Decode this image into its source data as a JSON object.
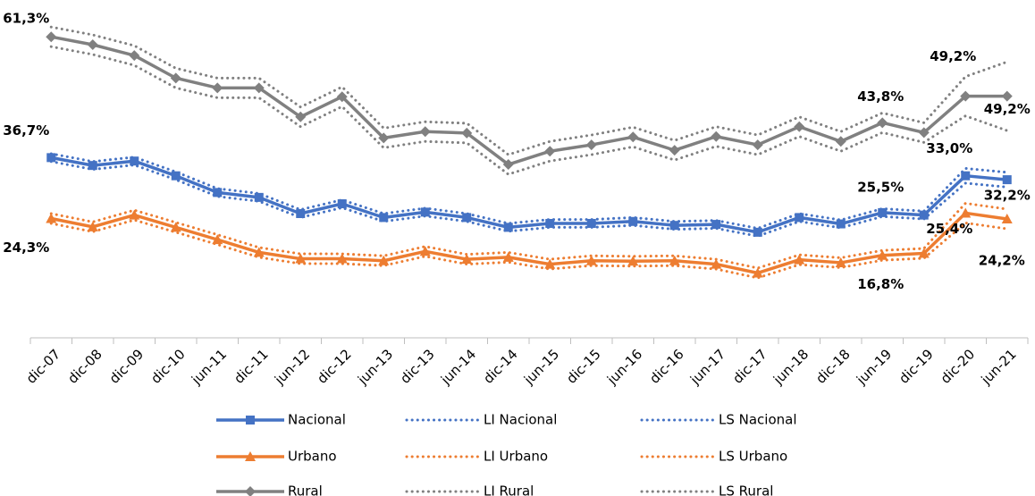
{
  "chart_data": {
    "type": "line",
    "categories": [
      "dic-07",
      "dic-08",
      "dic-09",
      "dic-10",
      "jun-11",
      "dic-11",
      "jun-12",
      "dic-12",
      "jun-13",
      "dic-13",
      "jun-14",
      "dic-14",
      "jun-15",
      "dic-15",
      "jun-16",
      "dic-16",
      "jun-17",
      "dic-17",
      "jun-18",
      "dic-18",
      "jun-19",
      "dic-19",
      "dic-20",
      "jun-21"
    ],
    "ylim": [
      0,
      68.8
    ],
    "series": [
      {
        "name": "Nacional",
        "color": "#4472c4",
        "line": "solid",
        "marker": "square",
        "values": [
          36.7,
          35.1,
          36.0,
          33.0,
          29.6,
          28.6,
          25.3,
          27.3,
          24.5,
          25.6,
          24.5,
          22.5,
          23.3,
          23.3,
          23.7,
          22.9,
          23.1,
          21.5,
          24.5,
          23.2,
          25.5,
          25.0,
          33.0,
          32.2
        ],
        "value_labels": [
          "36,7%",
          null,
          null,
          null,
          null,
          null,
          null,
          null,
          null,
          null,
          null,
          null,
          null,
          null,
          null,
          null,
          null,
          null,
          null,
          null,
          "25,5%",
          null,
          "33,0%",
          "32,2%"
        ]
      },
      {
        "name": "LI Nacional",
        "color": "#4472c4",
        "line": "dotted",
        "values": [
          35.9,
          34.3,
          35.2,
          32.2,
          28.8,
          27.8,
          24.5,
          26.5,
          23.7,
          24.8,
          23.7,
          21.7,
          22.5,
          22.5,
          22.9,
          22.1,
          22.3,
          20.7,
          23.7,
          22.4,
          24.7,
          24.2,
          31.5,
          30.7
        ]
      },
      {
        "name": "LS Nacional",
        "color": "#4472c4",
        "line": "dotted",
        "values": [
          37.5,
          35.9,
          36.8,
          33.8,
          30.4,
          29.4,
          26.1,
          28.1,
          25.3,
          26.4,
          25.3,
          23.3,
          24.1,
          24.1,
          24.5,
          23.7,
          23.9,
          22.3,
          25.3,
          24.0,
          26.3,
          25.8,
          34.5,
          33.7
        ]
      },
      {
        "name": "Urbano",
        "color": "#ed7d31",
        "line": "solid",
        "marker": "triangle",
        "values": [
          24.3,
          22.6,
          25.0,
          22.5,
          20.0,
          17.4,
          16.1,
          16.1,
          15.7,
          17.6,
          16.0,
          16.4,
          15.0,
          15.7,
          15.6,
          15.7,
          15.0,
          13.2,
          15.9,
          15.3,
          16.8,
          17.2,
          25.4,
          24.2
        ],
        "value_labels": [
          "24,3%",
          null,
          null,
          null,
          null,
          null,
          null,
          null,
          null,
          null,
          null,
          null,
          null,
          null,
          null,
          null,
          null,
          null,
          null,
          null,
          "16,8%",
          null,
          "25,4%",
          "24,2%"
        ]
      },
      {
        "name": "LI Urbano",
        "color": "#ed7d31",
        "line": "dotted",
        "values": [
          23.3,
          21.6,
          24.0,
          21.5,
          19.0,
          16.4,
          15.1,
          15.1,
          14.7,
          16.6,
          15.0,
          15.4,
          14.0,
          14.7,
          14.6,
          14.7,
          14.0,
          12.2,
          14.9,
          14.3,
          15.8,
          16.2,
          23.4,
          22.2
        ]
      },
      {
        "name": "LS Urbano",
        "color": "#ed7d31",
        "line": "dotted",
        "values": [
          25.3,
          23.6,
          26.0,
          23.5,
          21.0,
          18.4,
          17.1,
          17.1,
          16.7,
          18.6,
          17.0,
          17.4,
          16.0,
          16.7,
          16.6,
          16.7,
          16.0,
          14.2,
          16.9,
          16.3,
          17.8,
          18.2,
          27.4,
          26.2
        ]
      },
      {
        "name": "Rural",
        "color": "#808080",
        "line": "solid",
        "marker": "diamond",
        "values": [
          61.3,
          59.7,
          57.5,
          52.9,
          50.9,
          50.9,
          45.0,
          49.1,
          40.7,
          42.0,
          41.7,
          35.3,
          38.0,
          39.3,
          40.9,
          38.2,
          41.0,
          39.3,
          43.0,
          40.0,
          43.8,
          41.8,
          49.2,
          49.2
        ],
        "value_labels": [
          "61,3%",
          null,
          null,
          null,
          null,
          null,
          null,
          null,
          null,
          null,
          null,
          null,
          null,
          null,
          null,
          null,
          null,
          null,
          null,
          null,
          "43,8%",
          null,
          "49,2%",
          "49,2%"
        ]
      },
      {
        "name": "LI Rural",
        "color": "#808080",
        "line": "dotted",
        "values": [
          59.3,
          57.7,
          55.5,
          50.9,
          48.9,
          48.9,
          43.0,
          47.1,
          38.7,
          40.0,
          39.7,
          33.3,
          36.0,
          37.3,
          38.9,
          36.2,
          39.0,
          37.3,
          41.0,
          38.0,
          41.8,
          39.8,
          45.2,
          42.2
        ]
      },
      {
        "name": "LS Rural",
        "color": "#808080",
        "line": "dotted",
        "values": [
          63.3,
          61.7,
          59.5,
          54.9,
          52.9,
          52.9,
          47.0,
          51.1,
          42.7,
          44.0,
          43.7,
          37.3,
          40.0,
          41.3,
          42.9,
          40.2,
          43.0,
          41.3,
          45.0,
          42.0,
          45.8,
          43.8,
          53.2,
          56.2
        ]
      }
    ]
  }
}
